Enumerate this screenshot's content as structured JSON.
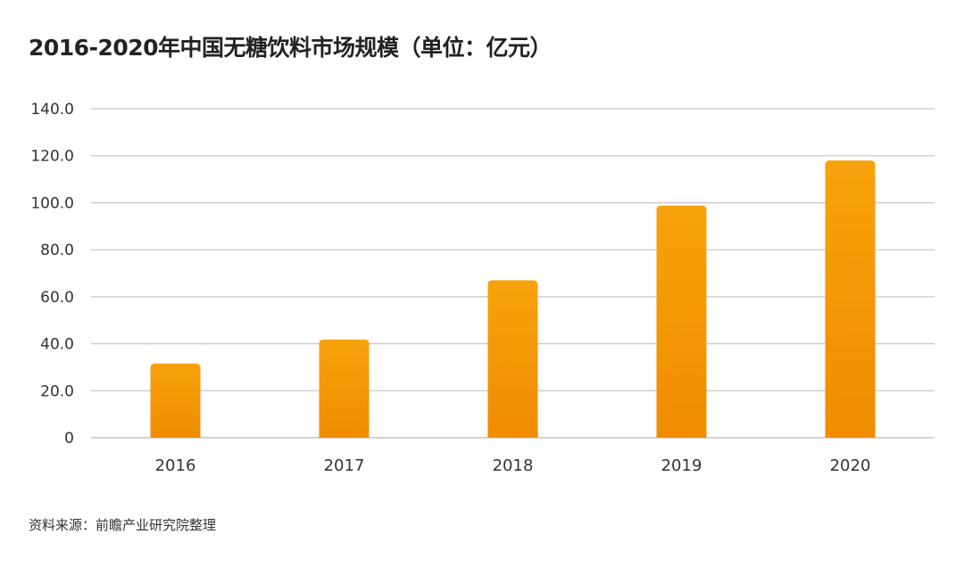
{
  "chart_data": {
    "type": "bar",
    "title": "2016-2020年中国无糖饮料市场规模（单位：亿元）",
    "categories": [
      "2016",
      "2017",
      "2018",
      "2019",
      "2020"
    ],
    "values": [
      31.6,
      41.8,
      67.0,
      98.8,
      118.0
    ],
    "xlabel": "",
    "ylabel": "",
    "ylim": [
      0,
      140
    ],
    "yticks": [
      "0",
      "20.0",
      "40.0",
      "60.0",
      "80.0",
      "100.0",
      "120.0",
      "140.0"
    ],
    "grid": true,
    "bar_color_top": "#f7a30c",
    "bar_color_bottom": "#f08c00"
  },
  "source": "资料来源：前瞻产业研究院整理"
}
